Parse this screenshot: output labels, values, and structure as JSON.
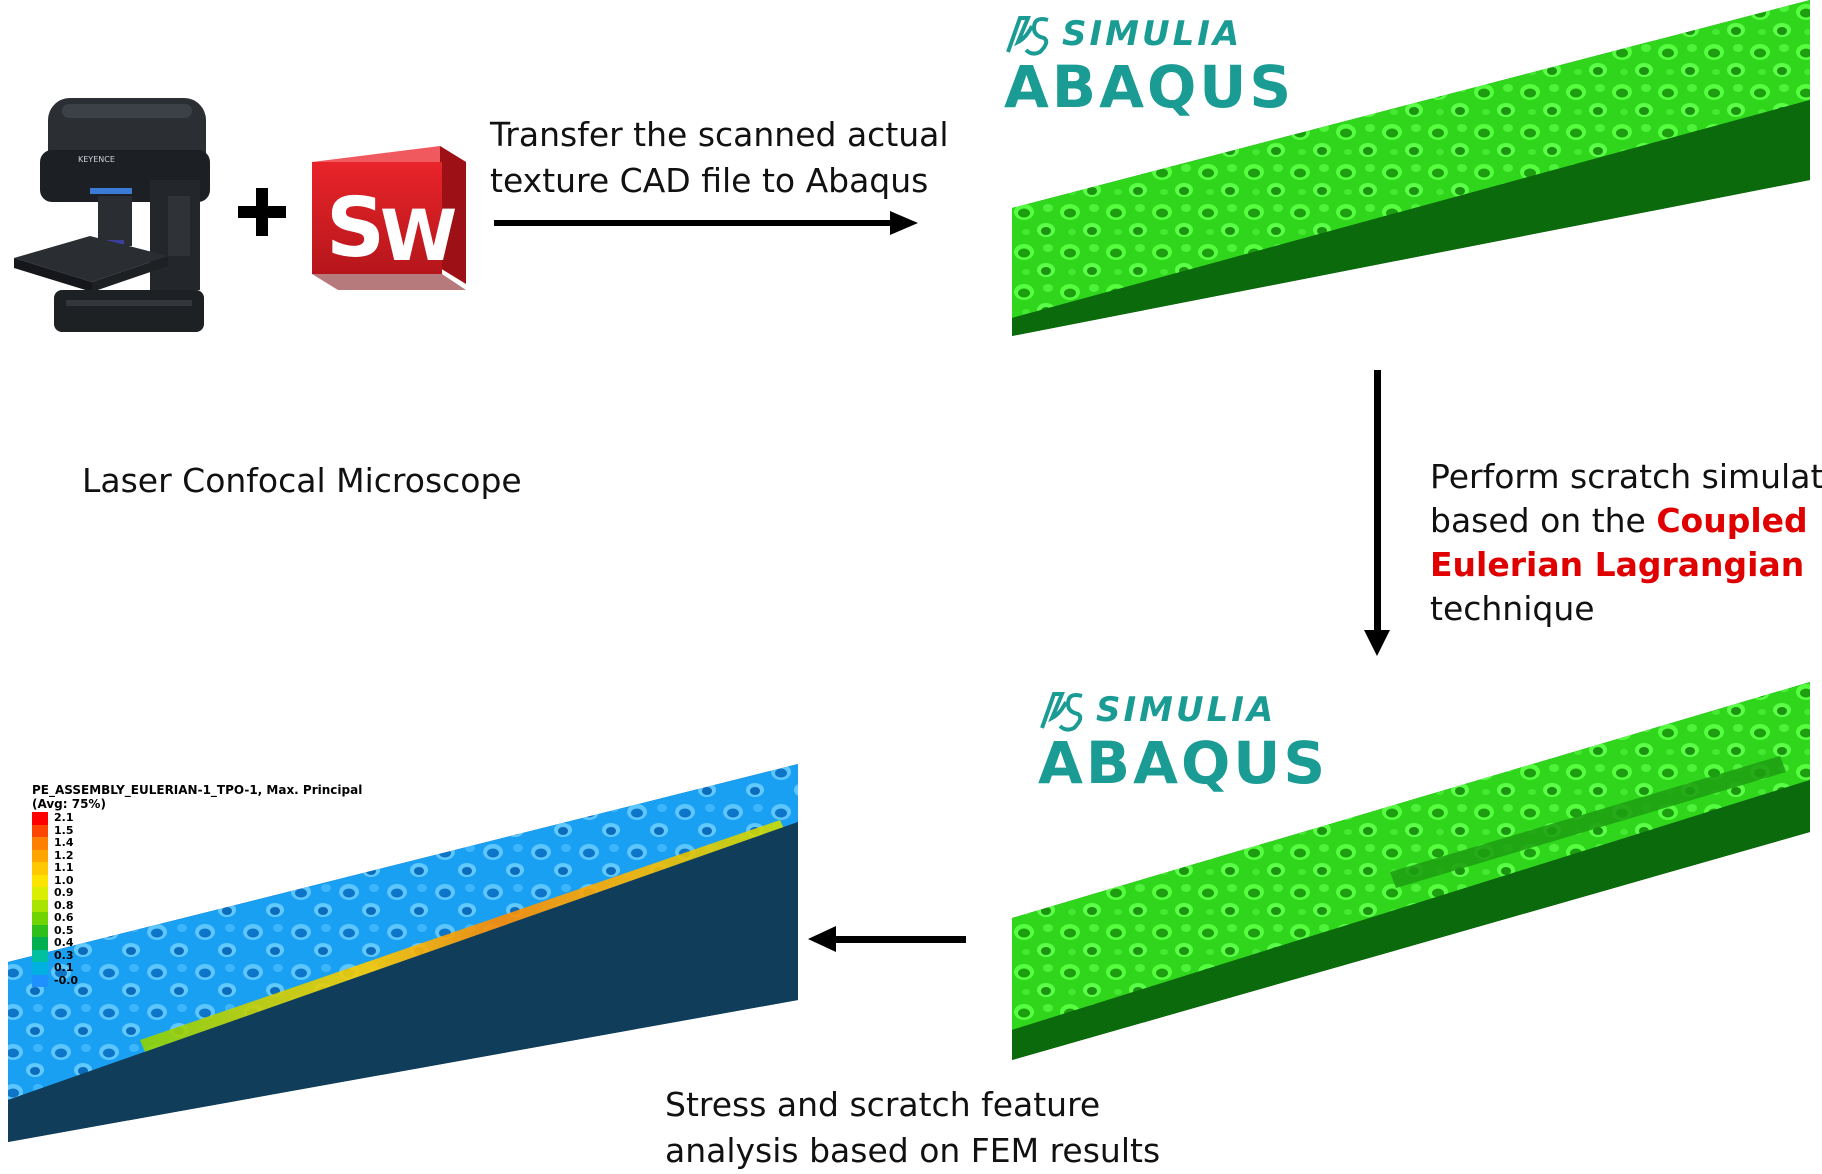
{
  "labels": {
    "transfer_line1": "Transfer the scanned actual",
    "transfer_line2": "texture CAD file to Abaqus",
    "microscope": "Laser Confocal Microscope",
    "perform_line1": "Perform scratch simulation",
    "perform_line2_prefix": "based on the ",
    "perform_line2_highlight": "Coupled",
    "perform_line3_highlight": "Eulerian Lagrangian",
    "perform_line4": "technique",
    "stress_line1": "Stress and scratch feature",
    "stress_line2": "analysis based on FEM results"
  },
  "logos": {
    "simulia_top": "SIMULIA",
    "abaqus_top": "ABAQUS",
    "simulia_bottom": "SIMULIA",
    "abaqus_bottom": "ABAQUS",
    "solidworks_s": "S",
    "solidworks_w": "W",
    "microscope_brand": "KEYENCE",
    "plus": "+"
  },
  "fem_legend": {
    "title_line1": "PE_ASSEMBLY_EULERIAN-1_TPO-1, Max. Principal",
    "title_line2": "(Avg: 75%)",
    "values": [
      "2.1",
      "1.5",
      "1.4",
      "1.2",
      "1.1",
      "1.0",
      "0.9",
      "0.8",
      "0.6",
      "0.5",
      "0.4",
      "0.3",
      "0.1",
      "-0.0"
    ],
    "colors": [
      "#ff0000",
      "#ff4500",
      "#ff8000",
      "#ffa500",
      "#ffc800",
      "#ffe400",
      "#d9ee00",
      "#a8e400",
      "#6fd400",
      "#2fbf1a",
      "#00b050",
      "#00c0a0",
      "#00b0e0",
      "#1e90ff"
    ]
  },
  "colors": {
    "abaqus_teal": "#1a9c95",
    "highlight_red": "#e00000",
    "model_green": "#33dd22",
    "model_dark_green": "#0a5a0a",
    "fem_blue": "#1a9ef0",
    "fem_dark": "#0d3a56"
  },
  "icons": {
    "microscope": "laser-confocal-microscope-icon",
    "solidworks": "solidworks-logo-icon",
    "simulia": "simulia-3ds-logo-icon"
  }
}
